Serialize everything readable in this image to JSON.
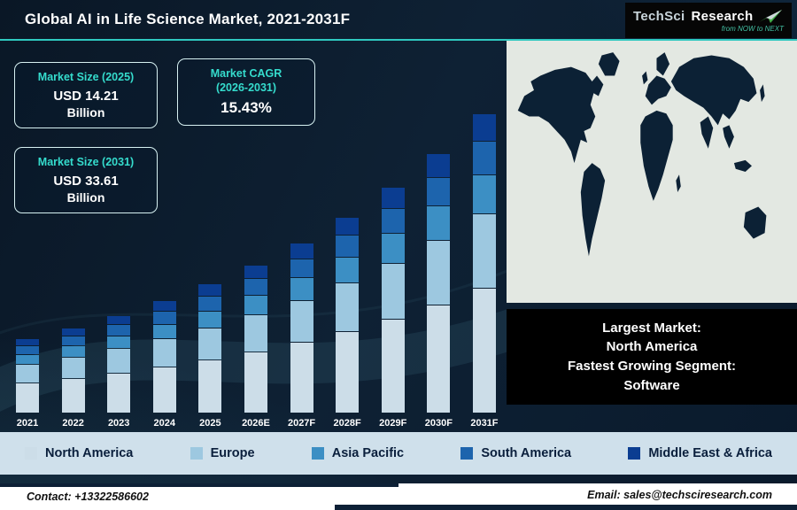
{
  "header": {
    "title": "Global AI in Life Science Market, 2021-2031F",
    "logo": {
      "brand1": "TechSci",
      "brand2": "Research",
      "tagline": "from NOW to NEXT"
    }
  },
  "stats": {
    "size2025": {
      "label": "Market Size (2025)",
      "value": "USD 14.21",
      "unit": "Billion"
    },
    "cagr": {
      "label": "Market CAGR",
      "sublabel": "(2026-2031)",
      "value": "15.43%"
    },
    "size2031": {
      "label": "Market Size (2031)",
      "value": "USD 33.61",
      "unit": "Billion"
    }
  },
  "map_panel": {
    "note_lines": [
      "Largest Market:",
      "North America",
      "Fastest Growing Segment:",
      "Software"
    ]
  },
  "chart_data": {
    "type": "bar",
    "stacked": true,
    "title": "Global AI in Life Science Market, 2021-2031F",
    "categories": [
      "2021",
      "2022",
      "2023",
      "2024",
      "2025",
      "2026E",
      "2027F",
      "2028F",
      "2029F",
      "2030F",
      "2031F"
    ],
    "series": [
      {
        "name": "North America",
        "color": "#ccdde8",
        "values": [
          3.36,
          3.88,
          4.48,
          5.17,
          5.97,
          6.89,
          7.95,
          9.18,
          10.59,
          12.23,
          14.12
        ]
      },
      {
        "name": "Europe",
        "color": "#9dc8e0",
        "values": [
          2.0,
          2.31,
          2.66,
          3.07,
          3.55,
          4.1,
          4.73,
          5.46,
          6.3,
          7.28,
          8.4
        ]
      },
      {
        "name": "Asia Pacific",
        "color": "#3c8fc4",
        "values": [
          1.04,
          1.2,
          1.38,
          1.6,
          1.85,
          2.13,
          2.46,
          2.84,
          3.28,
          3.78,
          4.37
        ]
      },
      {
        "name": "South America",
        "color": "#1d64ad",
        "values": [
          0.88,
          1.01,
          1.17,
          1.35,
          1.56,
          1.8,
          2.08,
          2.4,
          2.77,
          3.2,
          3.7
        ]
      },
      {
        "name": "Middle East & Africa",
        "color": "#0b3d91",
        "values": [
          0.72,
          0.83,
          0.96,
          1.11,
          1.28,
          1.47,
          1.7,
          1.96,
          2.27,
          2.62,
          3.02
        ]
      }
    ],
    "ylim": [
      0,
      36
    ],
    "grid": false,
    "legend_position": "bottom"
  },
  "footer": {
    "contact": "Contact: +13322586602",
    "email": "Email: sales@techsciresearch.com"
  }
}
